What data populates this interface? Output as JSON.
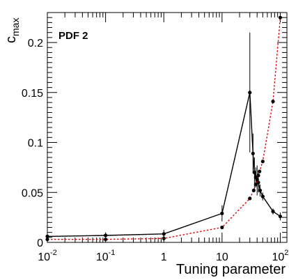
{
  "chart_data": {
    "type": "line",
    "label": "PDF 2",
    "xlabel": "Tuning parameter",
    "ylabel_main": "c",
    "ylabel_sub": "max",
    "x_scale": "log",
    "xlim": [
      0.01,
      130
    ],
    "ylim": [
      0,
      0.23
    ],
    "grid": false,
    "x_ticks": [
      {
        "value": 0.01,
        "base": "10",
        "exp": "-2"
      },
      {
        "value": 0.1,
        "base": "10",
        "exp": "-1"
      },
      {
        "value": 1,
        "base": "1",
        "exp": ""
      },
      {
        "value": 10,
        "base": "10",
        "exp": ""
      },
      {
        "value": 100,
        "base": "10",
        "exp": "2"
      }
    ],
    "y_ticks": [
      {
        "value": 0,
        "label": "0"
      },
      {
        "value": 0.05,
        "label": "0.05"
      },
      {
        "value": 0.1,
        "label": "0.1"
      },
      {
        "value": 0.15,
        "label": "0.15"
      },
      {
        "value": 0.2,
        "label": "0.2"
      }
    ],
    "series": [
      {
        "style": "solid",
        "color": "#000000",
        "points": [
          {
            "x": 0.01,
            "y": 0.006,
            "err": 0.002
          },
          {
            "x": 0.1,
            "y": 0.007,
            "err": 0.003
          },
          {
            "x": 1,
            "y": 0.0085,
            "err": 0.004
          },
          {
            "x": 10,
            "y": 0.029,
            "err": 0.008
          },
          {
            "x": 30,
            "y": 0.15,
            "err": 0.06
          },
          {
            "x": 34,
            "y": 0.089,
            "err": 0.02
          },
          {
            "x": 36,
            "y": 0.07,
            "err": 0.015
          },
          {
            "x": 38,
            "y": 0.065,
            "err": 0.01
          },
          {
            "x": 40,
            "y": 0.062,
            "err": 0.015
          },
          {
            "x": 42,
            "y": 0.06,
            "err": 0.01
          },
          {
            "x": 45,
            "y": 0.052,
            "err": 0.006
          },
          {
            "x": 50,
            "y": 0.046,
            "err": 0.004
          },
          {
            "x": 75,
            "y": 0.031,
            "err": 0.003
          },
          {
            "x": 100,
            "y": 0.026,
            "err": 0.004
          }
        ]
      },
      {
        "style": "dotted",
        "color": "#e00000",
        "points": [
          {
            "x": 0.01,
            "y": 0.003,
            "err": 0
          },
          {
            "x": 0.1,
            "y": 0.003,
            "err": 0
          },
          {
            "x": 1,
            "y": 0.004,
            "err": 0
          },
          {
            "x": 10,
            "y": 0.015,
            "err": 0
          },
          {
            "x": 30,
            "y": 0.044,
            "err": 0
          },
          {
            "x": 35,
            "y": 0.052,
            "err": 0
          },
          {
            "x": 38,
            "y": 0.058,
            "err": 0
          },
          {
            "x": 40,
            "y": 0.063,
            "err": 0
          },
          {
            "x": 42,
            "y": 0.067,
            "err": 0
          },
          {
            "x": 44,
            "y": 0.071,
            "err": 0
          },
          {
            "x": 50,
            "y": 0.081,
            "err": 0
          },
          {
            "x": 75,
            "y": 0.141,
            "err": 0
          },
          {
            "x": 100,
            "y": 0.225,
            "err": 0
          }
        ]
      }
    ]
  }
}
